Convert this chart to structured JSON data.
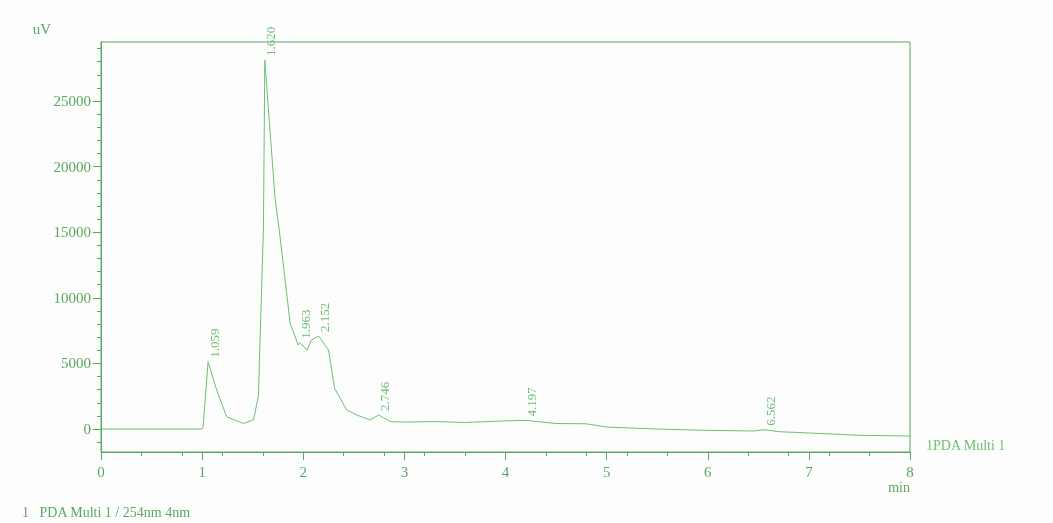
{
  "chart_data": {
    "type": "line",
    "xlabel": "min",
    "ylabel": "uV",
    "xlim": [
      0,
      8
    ],
    "xticks": [
      0,
      1,
      2,
      3,
      4,
      5,
      6,
      7,
      8
    ],
    "ylim": [
      -1750,
      29500
    ],
    "yticks": [
      0,
      5000,
      10000,
      15000,
      20000,
      25000
    ],
    "grid": false,
    "legend": false,
    "marker": "none",
    "line_style": "solid",
    "series": [
      {
        "name": "1PDA Multi 1",
        "color": "#6cc070",
        "x": [
          0,
          0.5,
          0.996,
          1.01,
          1.059,
          1.144,
          1.243,
          1.408,
          1.507,
          1.556,
          1.606,
          1.62,
          1.72,
          1.77,
          1.87,
          1.95,
          1.963,
          2.04,
          2.08,
          2.152,
          2.25,
          2.31,
          2.43,
          2.53,
          2.66,
          2.746,
          2.86,
          3.0,
          3.3,
          3.6,
          4.0,
          4.197,
          4.5,
          4.8,
          5.0,
          5.5,
          6.0,
          6.45,
          6.562,
          6.7,
          7.0,
          7.5,
          8.0
        ],
        "values": [
          0,
          0,
          0,
          170,
          5130,
          2970,
          940,
          430,
          690,
          2460,
          15170,
          28120,
          17700,
          14700,
          8070,
          6400,
          6580,
          6020,
          6780,
          7090,
          6020,
          3100,
          1450,
          1070,
          690,
          1070,
          560,
          530,
          570,
          500,
          620,
          660,
          420,
          400,
          150,
          0,
          -100,
          -150,
          -50,
          -200,
          -300,
          -480,
          -530
        ]
      }
    ],
    "annotations": [
      {
        "text": "1.059",
        "x": 1.059,
        "y": 5130
      },
      {
        "text": "1.620",
        "x": 1.62,
        "y": 28120
      },
      {
        "text": "1.963",
        "x": 1.963,
        "y": 6580
      },
      {
        "text": "2.152",
        "x": 2.152,
        "y": 7090
      },
      {
        "text": "2.746",
        "x": 2.746,
        "y": 1070
      },
      {
        "text": "4.197",
        "x": 4.197,
        "y": 660
      },
      {
        "text": "6.562",
        "x": 6.562,
        "y": -50
      },
      "1   PDA Multi 1 / 254nm 4nm"
    ]
  }
}
